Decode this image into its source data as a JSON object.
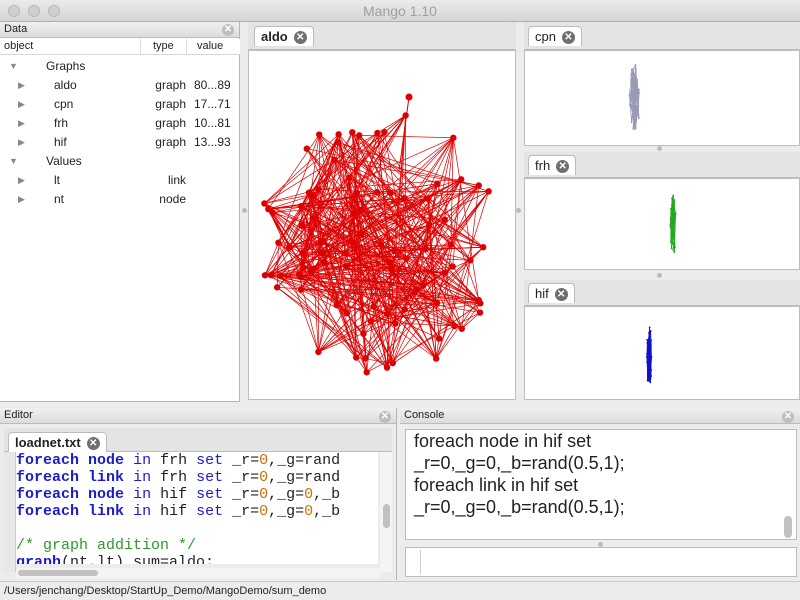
{
  "window": {
    "title": "Mango 1.10"
  },
  "data_panel": {
    "title": "Data",
    "columns": {
      "object": "object",
      "type": "type",
      "value": "value"
    },
    "groups": [
      {
        "label": "Graphs",
        "items": [
          {
            "name": "aldo",
            "type": "graph",
            "value": "80...89"
          },
          {
            "name": "cpn",
            "type": "graph",
            "value": "17...71"
          },
          {
            "name": "frh",
            "type": "graph",
            "value": "10...81"
          },
          {
            "name": "hif",
            "type": "graph",
            "value": "13...93"
          }
        ]
      },
      {
        "label": "Values",
        "items": [
          {
            "name": "lt",
            "type": "link",
            "value": ""
          },
          {
            "name": "nt",
            "type": "node",
            "value": ""
          }
        ]
      }
    ]
  },
  "graph_panes": {
    "main": {
      "tab": "aldo",
      "color": "#dd0000"
    },
    "cpn": {
      "tab": "cpn",
      "color": "#9a9ab8"
    },
    "frh": {
      "tab": "frh",
      "color": "#22aa22"
    },
    "hif": {
      "tab": "hif",
      "color": "#1111cc"
    }
  },
  "editor": {
    "title": "Editor",
    "tab": "loadnet.txt",
    "lines": [
      {
        "parts": [
          [
            "kw",
            "foreach"
          ],
          [
            "",
            " "
          ],
          [
            "kw",
            "node"
          ],
          [
            "",
            " "
          ],
          [
            "kw2",
            "in"
          ],
          [
            "",
            " frh "
          ],
          [
            "kw2",
            "set"
          ],
          [
            "",
            " _r="
          ],
          [
            "num",
            "0"
          ],
          [
            "",
            ",_g=rand"
          ]
        ]
      },
      {
        "parts": [
          [
            "kw",
            "foreach"
          ],
          [
            "",
            " "
          ],
          [
            "kw",
            "link"
          ],
          [
            "",
            " "
          ],
          [
            "kw2",
            "in"
          ],
          [
            "",
            " frh "
          ],
          [
            "kw2",
            "set"
          ],
          [
            "",
            " _r="
          ],
          [
            "num",
            "0"
          ],
          [
            "",
            ",_g=rand"
          ]
        ]
      },
      {
        "parts": [
          [
            "kw",
            "foreach"
          ],
          [
            "",
            " "
          ],
          [
            "kw",
            "node"
          ],
          [
            "",
            " "
          ],
          [
            "kw2",
            "in"
          ],
          [
            "",
            " hif "
          ],
          [
            "kw2",
            "set"
          ],
          [
            "",
            " _r="
          ],
          [
            "num",
            "0"
          ],
          [
            "",
            ",_g="
          ],
          [
            "num",
            "0"
          ],
          [
            "",
            ",_b"
          ]
        ]
      },
      {
        "parts": [
          [
            "kw",
            "foreach"
          ],
          [
            "",
            " "
          ],
          [
            "kw",
            "link"
          ],
          [
            "",
            " "
          ],
          [
            "kw2",
            "in"
          ],
          [
            "",
            " hif "
          ],
          [
            "kw2",
            "set"
          ],
          [
            "",
            " _r="
          ],
          [
            "num",
            "0"
          ],
          [
            "",
            ",_g="
          ],
          [
            "num",
            "0"
          ],
          [
            "",
            ",_b"
          ]
        ]
      },
      {
        "parts": [
          [
            "",
            ""
          ]
        ]
      },
      {
        "parts": [
          [
            "cmt",
            "/* graph addition */"
          ]
        ]
      },
      {
        "parts": [
          [
            "ul",
            "graph"
          ],
          [
            "",
            "(nt,lt) sum=aldo;"
          ]
        ]
      }
    ]
  },
  "console": {
    "title": "Console",
    "lines": [
      "foreach node in hif set",
      "_r=0,_g=0,_b=rand(0.5,1);",
      "foreach link in hif set",
      "_r=0,_g=0,_b=rand(0.5,1);"
    ],
    "input_value": ""
  },
  "status": {
    "path": "/Users/jenchang/Desktop/StartUp_Demo/MangoDemo/sum_demo"
  }
}
